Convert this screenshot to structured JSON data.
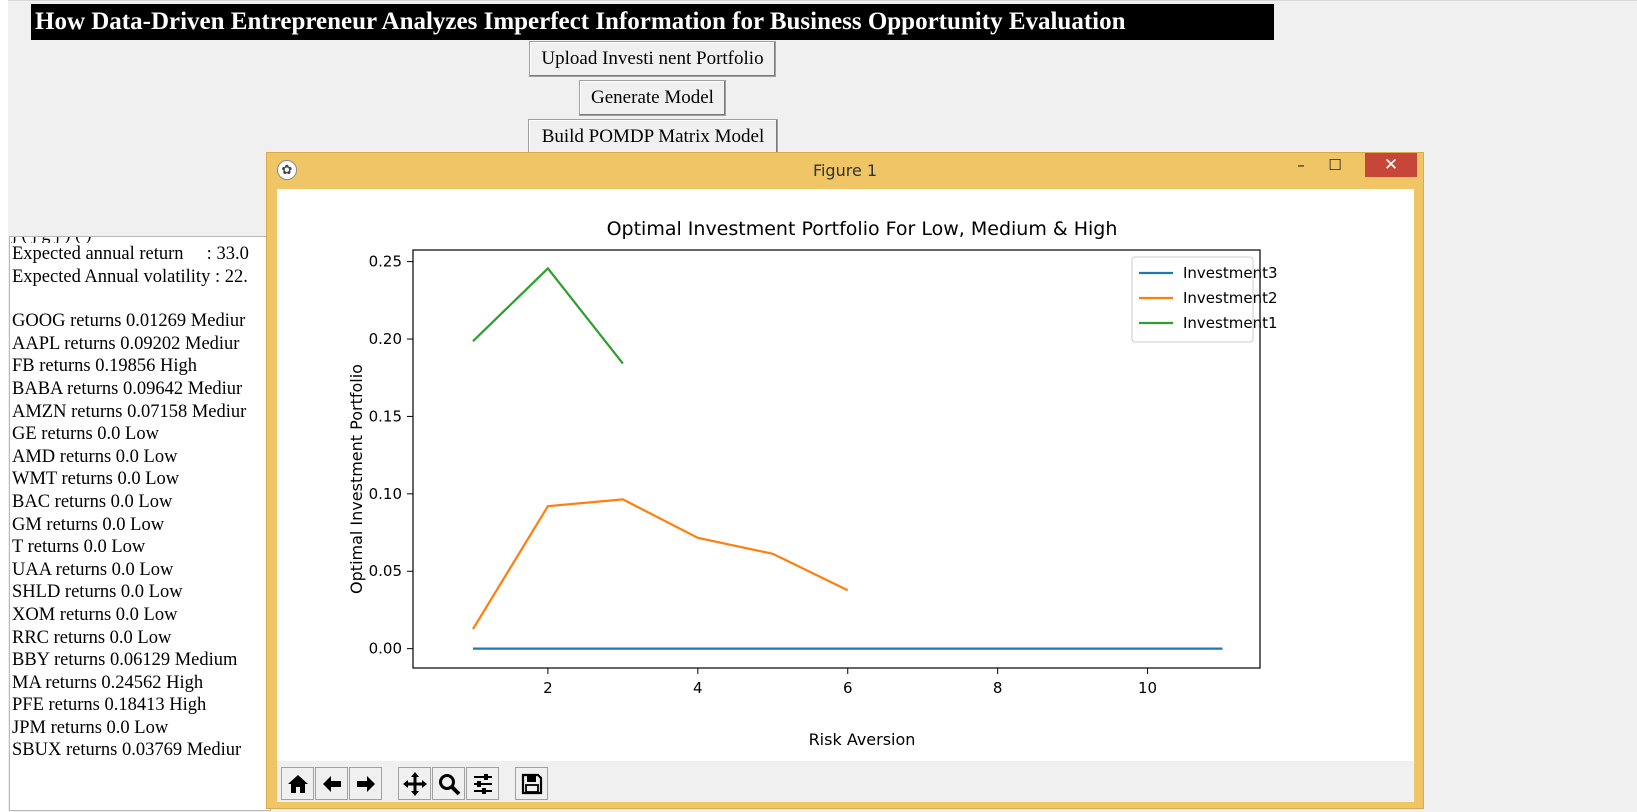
{
  "app": {
    "title": "How Data-Driven Entrepreneur Analyzes Imperfect Information for Business Opportunity Evaluation",
    "buttons": {
      "upload": "Upload Investi nent Portfolio",
      "generate": "Generate Model",
      "build": "Build POMDP Matrix Model"
    }
  },
  "output_panel": {
    "summary": [
      "Expected annual return     : 33.0",
      "Expected Annual volatility : 22."
    ],
    "returns": [
      "GOOG returns 0.01269 Mediur",
      "AAPL returns 0.09202 Mediur",
      "FB returns 0.19856 High",
      "BABA returns 0.09642 Mediur",
      "AMZN returns 0.07158 Mediur",
      "GE returns 0.0 Low",
      "AMD returns 0.0 Low",
      "WMT returns 0.0 Low",
      "BAC returns 0.0 Low",
      "GM returns 0.0 Low",
      "T returns 0.0 Low",
      "UAA returns 0.0 Low",
      "SHLD returns 0.0 Low",
      "XOM returns 0.0 Low",
      "RRC returns 0.0 Low",
      "BBY returns 0.06129 Medium",
      "MA returns 0.24562 High",
      "PFE returns 0.18413 High",
      "JPM returns 0.0 Low",
      "SBUX returns 0.03769 Mediur"
    ]
  },
  "figure_window": {
    "title": "Figure 1",
    "controls": {
      "minimize": "–",
      "maximize": "☐",
      "close": "✕"
    },
    "toolbar": [
      "home-icon",
      "back-arrow-icon",
      "forward-arrow-icon",
      "pan-icon",
      "zoom-icon",
      "configure-subplots-icon",
      "save-icon"
    ]
  },
  "chart_data": {
    "type": "line",
    "title": "Optimal Investment Portfolio For Low, Medium & High",
    "xlabel": "Risk Aversion",
    "ylabel": "Optimal Investment Portfolio",
    "xlim": [
      0.2,
      11.5
    ],
    "ylim": [
      -0.0125,
      0.2575
    ],
    "xticks": [
      2,
      4,
      6,
      8,
      10
    ],
    "yticks": [
      0.0,
      0.05,
      0.1,
      0.15,
      0.2,
      0.25
    ],
    "ytick_labels": [
      "0.00",
      "0.05",
      "0.10",
      "0.15",
      "0.20",
      "0.25"
    ],
    "grid": false,
    "legend_position": "top-right",
    "series": [
      {
        "name": "Investment3",
        "color": "#1f77b4",
        "x": [
          1,
          2,
          3,
          4,
          5,
          6,
          7,
          8,
          9,
          10,
          11
        ],
        "y": [
          0,
          0,
          0,
          0,
          0,
          0,
          0,
          0,
          0,
          0,
          0
        ]
      },
      {
        "name": "Investment2",
        "color": "#ff7f0e",
        "x": [
          1,
          2,
          3,
          4,
          5,
          6
        ],
        "y": [
          0.01269,
          0.09202,
          0.09642,
          0.07158,
          0.06129,
          0.03769
        ]
      },
      {
        "name": "Investment1",
        "color": "#2ca02c",
        "x": [
          1,
          2,
          3
        ],
        "y": [
          0.19856,
          0.24562,
          0.18413
        ]
      }
    ]
  }
}
